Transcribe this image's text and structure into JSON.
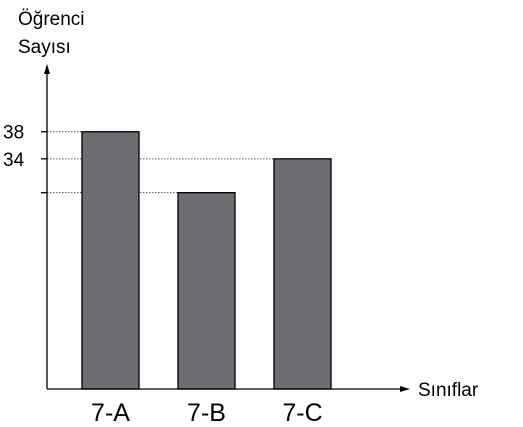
{
  "chart_data": {
    "type": "bar",
    "ylabel_lines": [
      "Öğrenci",
      "Sayısı"
    ],
    "xlabel": "Sınıflar",
    "categories": [
      "7-A",
      "7-B",
      "7-C"
    ],
    "values": [
      38,
      29,
      34
    ],
    "ytick_values": [
      38,
      34,
      29
    ],
    "ytick_labels": [
      "38",
      "34",
      ""
    ],
    "ylim": [
      0,
      45
    ],
    "bar_color": "#6d6e71",
    "grid": false
  }
}
